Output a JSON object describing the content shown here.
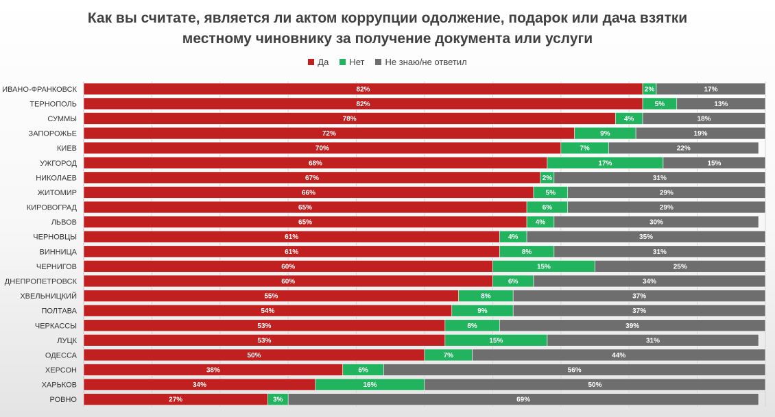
{
  "chart_data": {
    "type": "bar",
    "orientation": "horizontal",
    "stacked": true,
    "title_lines": [
      "Как вы считате, является ли актом коррупции одолжение, подарок или дача взятки",
      "местному чиновнику за получение документа или услуги"
    ],
    "legend_position": "top",
    "xlim": [
      0,
      100
    ],
    "grid": true,
    "categories": [
      "ИВАНО-ФРАНКОВСК",
      "ТЕРНОПОЛЬ",
      "СУММЫ",
      "ЗАПОРОЖЬЕ",
      "КИЕВ",
      "УЖГОРОД",
      "НИКОЛАЕВ",
      "ЖИТОМИР",
      "КИРОВОГРАД",
      "ЛЬВОВ",
      "ЧЕРНОВЦЫ",
      "ВИННИЦА",
      "ЧЕРНИГОВ",
      "ДНЕПРОПЕТРОВСК",
      "ХВЕЛЬНИЦКИЙ",
      "ПОЛТАВА",
      "ЧЕРКАССЫ",
      "ЛУЦК",
      "ОДЕССА",
      "ХЕРСОН",
      "ХАРЬКОВ",
      "РОВНО"
    ],
    "series": [
      {
        "name": "Да",
        "color": "#c0201f",
        "values": [
          82,
          82,
          78,
          72,
          70,
          68,
          67,
          66,
          65,
          65,
          61,
          61,
          60,
          60,
          55,
          54,
          53,
          53,
          50,
          38,
          34,
          27
        ]
      },
      {
        "name": "Нет",
        "color": "#22b35e",
        "values": [
          2,
          5,
          4,
          9,
          7,
          17,
          2,
          5,
          6,
          4,
          4,
          8,
          15,
          6,
          8,
          9,
          8,
          15,
          7,
          6,
          16,
          3
        ]
      },
      {
        "name": "Не знаю/не ответил",
        "color": "#6e6e6e",
        "values": [
          17,
          13,
          18,
          19,
          22,
          15,
          31,
          29,
          29,
          30,
          35,
          31,
          25,
          34,
          37,
          37,
          39,
          31,
          44,
          56,
          50,
          69
        ]
      }
    ]
  }
}
